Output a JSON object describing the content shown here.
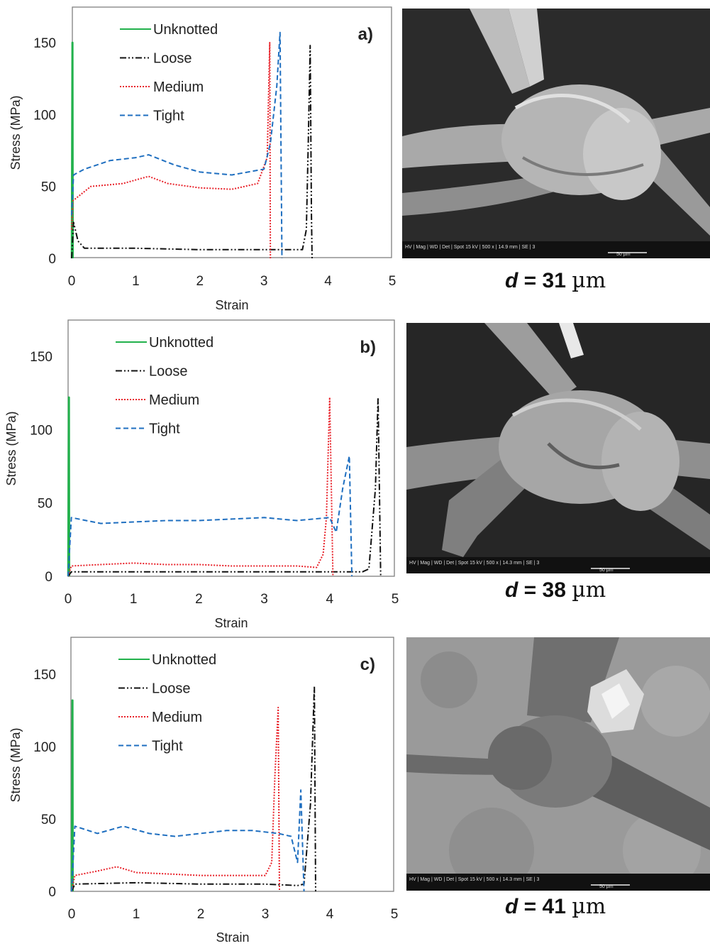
{
  "colors": {
    "unknotted": "#22b14c",
    "loose": "#111111",
    "medium": "#e8222a",
    "tight": "#1f6fc0",
    "axis": "#666666",
    "text": "#222222"
  },
  "chart_data": [
    {
      "type": "line",
      "panel_label": "a)",
      "xlabel": "Strain",
      "ylabel": "Stress (MPa)",
      "xlim": [
        0,
        5
      ],
      "ylim": [
        0,
        150
      ],
      "x_ticks": [
        "0",
        "1",
        "2",
        "3",
        "4",
        "5"
      ],
      "y_ticks": [
        "0",
        "50",
        "100",
        "150"
      ],
      "legend": "top-left",
      "series": [
        {
          "name": "Unknotted",
          "style": "solid",
          "x": [
            0.0,
            0.01,
            0.015,
            0.02
          ],
          "y": [
            0,
            150,
            150,
            0
          ]
        },
        {
          "name": "Loose",
          "style": "dashdot",
          "x": [
            0.0,
            0.03,
            0.1,
            0.2,
            1.0,
            2.0,
            3.0,
            3.3,
            3.6,
            3.66,
            3.69,
            3.72,
            3.74,
            3.75
          ],
          "y": [
            0,
            25,
            12,
            7,
            7,
            6,
            6,
            6,
            6,
            20,
            80,
            148,
            30,
            0
          ]
        },
        {
          "name": "Medium",
          "style": "dotted",
          "x": [
            0.0,
            0.02,
            0.3,
            0.8,
            1.2,
            1.5,
            2.0,
            2.5,
            2.9,
            3.05,
            3.09,
            3.1
          ],
          "y": [
            20,
            40,
            50,
            52,
            57,
            52,
            49,
            48,
            52,
            70,
            150,
            0
          ]
        },
        {
          "name": "Tight",
          "style": "dashed",
          "x": [
            0.0,
            0.03,
            0.2,
            0.6,
            1.0,
            1.2,
            1.6,
            2.0,
            2.5,
            3.0,
            3.1,
            3.2,
            3.25,
            3.28
          ],
          "y": [
            30,
            58,
            62,
            68,
            70,
            72,
            65,
            60,
            58,
            62,
            80,
            120,
            157,
            0
          ]
        }
      ]
    },
    {
      "type": "line",
      "panel_label": "b)",
      "xlabel": "Strain",
      "ylabel": "Stress (MPa)",
      "xlim": [
        0,
        5
      ],
      "ylim": [
        0,
        150
      ],
      "x_ticks": [
        "0",
        "1",
        "2",
        "3",
        "4",
        "5"
      ],
      "y_ticks": [
        "0",
        "50",
        "100",
        "150"
      ],
      "legend": "top-left",
      "series": [
        {
          "name": "Unknotted",
          "style": "solid",
          "x": [
            0.0,
            0.01,
            0.015,
            0.02
          ],
          "y": [
            0,
            122,
            122,
            0
          ]
        },
        {
          "name": "Loose",
          "style": "dashdot",
          "x": [
            0.0,
            0.05,
            1.0,
            2.0,
            3.0,
            4.0,
            4.5,
            4.6,
            4.7,
            4.74,
            4.78
          ],
          "y": [
            0,
            3,
            3,
            3,
            3,
            3,
            3,
            5,
            60,
            122,
            0
          ]
        },
        {
          "name": "Medium",
          "style": "dotted",
          "x": [
            0.0,
            0.05,
            0.5,
            1.0,
            1.5,
            2.0,
            2.5,
            3.0,
            3.5,
            3.8,
            3.9,
            3.95,
            4.0,
            4.05
          ],
          "y": [
            0,
            7,
            8,
            9,
            8,
            8,
            7,
            7,
            7,
            6,
            15,
            40,
            122,
            0
          ]
        },
        {
          "name": "Tight",
          "style": "dashed",
          "x": [
            0.0,
            0.05,
            0.5,
            1.0,
            1.5,
            2.0,
            2.5,
            3.0,
            3.5,
            4.0,
            4.1,
            4.2,
            4.3,
            4.34
          ],
          "y": [
            0,
            40,
            36,
            37,
            38,
            38,
            39,
            40,
            38,
            40,
            30,
            60,
            82,
            0
          ]
        }
      ]
    },
    {
      "type": "line",
      "panel_label": "c)",
      "xlabel": "Strain",
      "ylabel": "Stress (MPa)",
      "xlim": [
        0,
        5
      ],
      "ylim": [
        0,
        150
      ],
      "x_ticks": [
        "0",
        "1",
        "2",
        "3",
        "4",
        "5"
      ],
      "y_ticks": [
        "0",
        "50",
        "100",
        "150"
      ],
      "legend": "top-left",
      "series": [
        {
          "name": "Unknotted",
          "style": "solid",
          "x": [
            0.0,
            0.01,
            0.015,
            0.02
          ],
          "y": [
            0,
            132,
            132,
            0
          ]
        },
        {
          "name": "Loose",
          "style": "dashdot",
          "x": [
            0.0,
            0.05,
            1.0,
            2.0,
            3.0,
            3.5,
            3.6,
            3.7,
            3.76,
            3.78
          ],
          "y": [
            0,
            5,
            6,
            5,
            5,
            4,
            5,
            60,
            142,
            0
          ]
        },
        {
          "name": "Medium",
          "style": "dotted",
          "x": [
            0.0,
            0.05,
            0.4,
            0.7,
            1.0,
            1.5,
            2.0,
            2.5,
            3.0,
            3.1,
            3.15,
            3.2,
            3.22
          ],
          "y": [
            0,
            11,
            14,
            17,
            13,
            12,
            11,
            11,
            11,
            20,
            80,
            127,
            0
          ]
        },
        {
          "name": "Tight",
          "style": "dashed",
          "x": [
            0.0,
            0.05,
            0.4,
            0.8,
            1.2,
            1.6,
            2.0,
            2.4,
            2.8,
            3.2,
            3.4,
            3.5,
            3.55,
            3.6
          ],
          "y": [
            0,
            45,
            40,
            45,
            40,
            38,
            40,
            42,
            42,
            40,
            38,
            20,
            70,
            0
          ]
        }
      ]
    }
  ],
  "sem_images": [
    {
      "scale_info": "HV | Mag | WD | Det | Spot  15 kV | 500 x | 14.9 mm | SE | 3",
      "scale_bar": "50 µm"
    },
    {
      "scale_info": "HV | Mag | WD | Det | Spot  15 kV | 500 x | 14.3 mm | SE | 3",
      "scale_bar": "50 µm"
    },
    {
      "scale_info": "HV | Mag | WD | Det | Spot  15 kV | 500 x | 14.3 mm | SE | 3",
      "scale_bar": "50 µm"
    }
  ],
  "captions": [
    {
      "var": "d",
      "eq": " = 31 ",
      "unit": "µm"
    },
    {
      "var": "d",
      "eq": " = 38 ",
      "unit": "µm"
    },
    {
      "var": "d",
      "eq": " = 41 ",
      "unit": "µm"
    }
  ]
}
